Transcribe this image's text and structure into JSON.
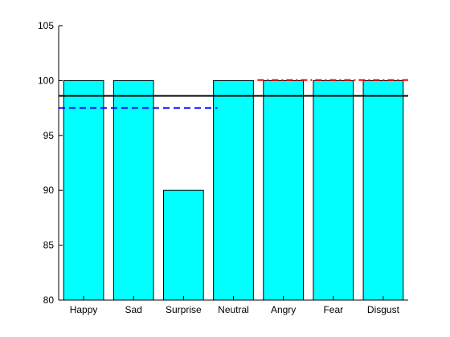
{
  "chart_data": {
    "type": "bar",
    "categories": [
      "Happy",
      "Sad",
      "Surprise",
      "Neutral",
      "Angry",
      "Fear",
      "Disgust"
    ],
    "values": [
      100,
      100,
      90,
      100,
      100,
      100,
      100
    ],
    "ylim": [
      80,
      105
    ],
    "yticks": [
      80,
      85,
      90,
      95,
      100,
      105
    ],
    "grid": false,
    "bar_color": "#00ffff",
    "bar_edge_color": "#000000",
    "reference_lines": [
      {
        "y": 98.6,
        "x_from_category": null,
        "x_to_category": null,
        "color": "#000000",
        "style": "solid"
      },
      {
        "y": 97.5,
        "x_from_category": null,
        "x_to_category": "Neutral",
        "color": "#0000ff",
        "style": "dashed"
      },
      {
        "y": 100.05,
        "x_from_category": "Neutral",
        "x_to_category": null,
        "color": "#ff0000",
        "style": "dashdot"
      }
    ]
  }
}
